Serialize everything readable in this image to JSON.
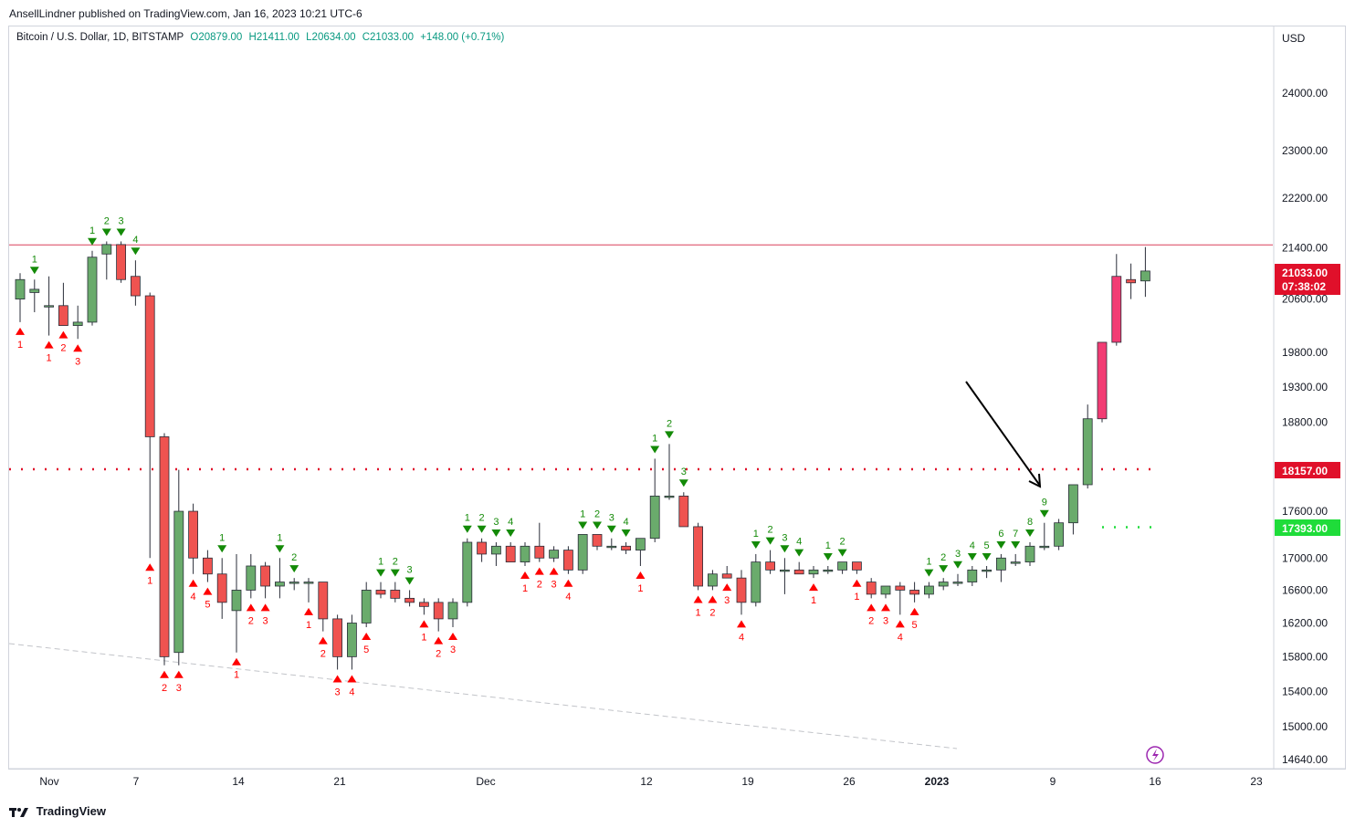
{
  "header": {
    "publisher_line": "AnsellLindner published on TradingView.com, Jan 16, 2023 10:21 UTC-6"
  },
  "legend": {
    "symbol": "Bitcoin / U.S. Dollar, 1D, BITSTAMP",
    "open": "O20879.00",
    "high": "H21411.00",
    "low": "L20634.00",
    "close": "C21033.00",
    "change": "+148.00 (+0.71%)"
  },
  "footer": {
    "brand": "TradingView"
  },
  "colors": {
    "up": "#6aab6c",
    "down": "#ef5350",
    "highlight": "#f23c74",
    "sell_signal": "#138a07",
    "buy_signal": "#ff0000",
    "red_line": "#d9405a",
    "accent_tag": "#e0102a",
    "green_tag": "#1fdc3a"
  },
  "chart_data": {
    "type": "candlestick",
    "currency": "USD",
    "y_axis": {
      "scale": "log",
      "ticks": [
        24000,
        23000,
        22200,
        21400,
        20600,
        19800,
        19300,
        18800,
        18157,
        17600,
        17000,
        16600,
        16200,
        15800,
        15400,
        15000,
        14640
      ],
      "tick_labels": [
        "24000.00",
        "23000.00",
        "22200.00",
        "21400.00",
        "20600.00",
        "19800.00",
        "19300.00",
        "18800.00",
        "",
        "17600.00",
        "17000.00",
        "16600.00",
        "16200.00",
        "15800.00",
        "15400.00",
        "15000.00",
        "14640.00"
      ]
    },
    "x_axis": {
      "labels": [
        "Nov",
        "7",
        "14",
        "21",
        "Dec",
        "12",
        "19",
        "26",
        "2023",
        "9",
        "16",
        "23"
      ],
      "bold": [
        "2023"
      ]
    },
    "price_tags": [
      {
        "value": "21033.00",
        "sub": "07:38:02",
        "color": "#e0102a"
      },
      {
        "value": "18157.00",
        "color": "#e0102a"
      },
      {
        "value": "17393.00",
        "color": "#1fdc3a"
      }
    ],
    "horizontal_lines": [
      {
        "price": 21445,
        "style": "solid",
        "color": "#d9405a"
      },
      {
        "price": 18157,
        "style": "dotted",
        "color": "#e0102a"
      },
      {
        "price": 17393,
        "style": "dotted",
        "color": "#1fdc3a",
        "from_index": 75
      }
    ],
    "candles": [
      {
        "o": 20600,
        "h": 21000,
        "l": 20250,
        "c": 20900
      },
      {
        "o": 20700,
        "h": 20900,
        "l": 20400,
        "c": 20750
      },
      {
        "o": 20500,
        "h": 20950,
        "l": 20050,
        "c": 20500
      },
      {
        "o": 20500,
        "h": 20850,
        "l": 20200,
        "c": 20200
      },
      {
        "o": 20200,
        "h": 20500,
        "l": 20000,
        "c": 20250
      },
      {
        "o": 20250,
        "h": 21350,
        "l": 20200,
        "c": 21250
      },
      {
        "o": 21300,
        "h": 21500,
        "l": 20900,
        "c": 21450
      },
      {
        "o": 21450,
        "h": 21500,
        "l": 20850,
        "c": 20900
      },
      {
        "o": 20950,
        "h": 21200,
        "l": 20500,
        "c": 20650
      },
      {
        "o": 20650,
        "h": 20700,
        "l": 17000,
        "c": 18600
      },
      {
        "o": 18600,
        "h": 18650,
        "l": 15700,
        "c": 15800
      },
      {
        "o": 15850,
        "h": 18150,
        "l": 15700,
        "c": 17600
      },
      {
        "o": 17600,
        "h": 17700,
        "l": 16800,
        "c": 17000
      },
      {
        "o": 17000,
        "h": 17100,
        "l": 16700,
        "c": 16800
      },
      {
        "o": 16800,
        "h": 17000,
        "l": 16250,
        "c": 16450
      },
      {
        "o": 16350,
        "h": 17050,
        "l": 15850,
        "c": 16600
      },
      {
        "o": 16600,
        "h": 17050,
        "l": 16500,
        "c": 16900
      },
      {
        "o": 16900,
        "h": 16950,
        "l": 16500,
        "c": 16650
      },
      {
        "o": 16650,
        "h": 17000,
        "l": 16500,
        "c": 16700
      },
      {
        "o": 16700,
        "h": 16750,
        "l": 16600,
        "c": 16700
      },
      {
        "o": 16700,
        "h": 16750,
        "l": 16450,
        "c": 16700
      },
      {
        "o": 16700,
        "h": 16700,
        "l": 16100,
        "c": 16250
      },
      {
        "o": 16250,
        "h": 16300,
        "l": 15650,
        "c": 15800
      },
      {
        "o": 15800,
        "h": 16300,
        "l": 15650,
        "c": 16200
      },
      {
        "o": 16200,
        "h": 16700,
        "l": 16150,
        "c": 16600
      },
      {
        "o": 16600,
        "h": 16700,
        "l": 16500,
        "c": 16550
      },
      {
        "o": 16600,
        "h": 16700,
        "l": 16450,
        "c": 16500
      },
      {
        "o": 16500,
        "h": 16600,
        "l": 16400,
        "c": 16450
      },
      {
        "o": 16450,
        "h": 16500,
        "l": 16300,
        "c": 16400
      },
      {
        "o": 16450,
        "h": 16500,
        "l": 16100,
        "c": 16250
      },
      {
        "o": 16250,
        "h": 16500,
        "l": 16150,
        "c": 16450
      },
      {
        "o": 16450,
        "h": 17250,
        "l": 16400,
        "c": 17200
      },
      {
        "o": 17200,
        "h": 17250,
        "l": 16950,
        "c": 17050
      },
      {
        "o": 17050,
        "h": 17200,
        "l": 16900,
        "c": 17150
      },
      {
        "o": 17150,
        "h": 17200,
        "l": 16950,
        "c": 16950
      },
      {
        "o": 16950,
        "h": 17200,
        "l": 16900,
        "c": 17150
      },
      {
        "o": 17150,
        "h": 17450,
        "l": 16950,
        "c": 17000
      },
      {
        "o": 17000,
        "h": 17150,
        "l": 16950,
        "c": 17100
      },
      {
        "o": 17100,
        "h": 17150,
        "l": 16800,
        "c": 16850
      },
      {
        "o": 16850,
        "h": 17300,
        "l": 16800,
        "c": 17300
      },
      {
        "o": 17300,
        "h": 17300,
        "l": 17100,
        "c": 17150
      },
      {
        "o": 17150,
        "h": 17250,
        "l": 17100,
        "c": 17150
      },
      {
        "o": 17150,
        "h": 17200,
        "l": 17050,
        "c": 17100
      },
      {
        "o": 17100,
        "h": 17250,
        "l": 16900,
        "c": 17250
      },
      {
        "o": 17250,
        "h": 18300,
        "l": 17200,
        "c": 17800
      },
      {
        "o": 17800,
        "h": 18500,
        "l": 17750,
        "c": 17800
      },
      {
        "o": 17800,
        "h": 17850,
        "l": 17450,
        "c": 17400
      },
      {
        "o": 17400,
        "h": 17450,
        "l": 16600,
        "c": 16650
      },
      {
        "o": 16650,
        "h": 16850,
        "l": 16600,
        "c": 16800
      },
      {
        "o": 16800,
        "h": 16900,
        "l": 16750,
        "c": 16750
      },
      {
        "o": 16750,
        "h": 16850,
        "l": 16300,
        "c": 16450
      },
      {
        "o": 16450,
        "h": 17050,
        "l": 16400,
        "c": 16950
      },
      {
        "o": 16950,
        "h": 17100,
        "l": 16800,
        "c": 16850
      },
      {
        "o": 16850,
        "h": 17000,
        "l": 16550,
        "c": 16850
      },
      {
        "o": 16850,
        "h": 16950,
        "l": 16800,
        "c": 16800
      },
      {
        "o": 16800,
        "h": 16900,
        "l": 16750,
        "c": 16850
      },
      {
        "o": 16850,
        "h": 16900,
        "l": 16800,
        "c": 16850
      },
      {
        "o": 16850,
        "h": 16950,
        "l": 16800,
        "c": 16950
      },
      {
        "o": 16950,
        "h": 16950,
        "l": 16800,
        "c": 16850
      },
      {
        "o": 16700,
        "h": 16750,
        "l": 16500,
        "c": 16550
      },
      {
        "o": 16550,
        "h": 16650,
        "l": 16500,
        "c": 16650
      },
      {
        "o": 16650,
        "h": 16700,
        "l": 16300,
        "c": 16600
      },
      {
        "o": 16600,
        "h": 16700,
        "l": 16450,
        "c": 16550
      },
      {
        "o": 16550,
        "h": 16700,
        "l": 16500,
        "c": 16650
      },
      {
        "o": 16650,
        "h": 16750,
        "l": 16600,
        "c": 16700
      },
      {
        "o": 16700,
        "h": 16800,
        "l": 16650,
        "c": 16700
      },
      {
        "o": 16700,
        "h": 16900,
        "l": 16650,
        "c": 16850
      },
      {
        "o": 16850,
        "h": 16900,
        "l": 16750,
        "c": 16850
      },
      {
        "o": 16850,
        "h": 17050,
        "l": 16700,
        "c": 17000
      },
      {
        "o": 16950,
        "h": 17050,
        "l": 16900,
        "c": 16950
      },
      {
        "o": 16950,
        "h": 17200,
        "l": 16900,
        "c": 17150
      },
      {
        "o": 17150,
        "h": 17450,
        "l": 17100,
        "c": 17150
      },
      {
        "o": 17150,
        "h": 17500,
        "l": 17100,
        "c": 17450
      },
      {
        "o": 17450,
        "h": 17950,
        "l": 17300,
        "c": 17950
      },
      {
        "o": 17950,
        "h": 19050,
        "l": 17900,
        "c": 18850
      },
      {
        "o": 18850,
        "h": 19950,
        "l": 18800,
        "c": 19950
      },
      {
        "o": 19950,
        "h": 21300,
        "l": 19900,
        "c": 20950
      },
      {
        "o": 20900,
        "h": 21150,
        "l": 20600,
        "c": 20850
      },
      {
        "o": 20879,
        "h": 21411,
        "l": 20634,
        "c": 21033
      }
    ],
    "highlighted_candles": [
      75,
      76
    ],
    "signals": [
      {
        "i": 0,
        "pos": "below",
        "label": "1"
      },
      {
        "i": 1,
        "pos": "above",
        "label": "1"
      },
      {
        "i": 2,
        "pos": "below",
        "label": "1"
      },
      {
        "i": 3,
        "pos": "below",
        "label": "2"
      },
      {
        "i": 4,
        "pos": "below",
        "label": "3"
      },
      {
        "i": 5,
        "pos": "above",
        "label": "1"
      },
      {
        "i": 6,
        "pos": "above",
        "label": "2"
      },
      {
        "i": 7,
        "pos": "above",
        "label": "3"
      },
      {
        "i": 8,
        "pos": "above",
        "label": "4"
      },
      {
        "i": 9,
        "pos": "below",
        "label": "1"
      },
      {
        "i": 10,
        "pos": "below",
        "label": "2"
      },
      {
        "i": 11,
        "pos": "below",
        "label": "3"
      },
      {
        "i": 12,
        "pos": "below",
        "label": "4"
      },
      {
        "i": 13,
        "pos": "below",
        "label": "5"
      },
      {
        "i": 14,
        "pos": "above",
        "label": "1"
      },
      {
        "i": 15,
        "pos": "below",
        "label": "1"
      },
      {
        "i": 16,
        "pos": "below",
        "label": "2"
      },
      {
        "i": 17,
        "pos": "below",
        "label": "3"
      },
      {
        "i": 18,
        "pos": "above",
        "label": "1"
      },
      {
        "i": 19,
        "pos": "above",
        "label": "2"
      },
      {
        "i": 20,
        "pos": "below",
        "label": "1"
      },
      {
        "i": 21,
        "pos": "below",
        "label": "2"
      },
      {
        "i": 22,
        "pos": "below",
        "label": "3"
      },
      {
        "i": 23,
        "pos": "below",
        "label": "4"
      },
      {
        "i": 24,
        "pos": "below",
        "label": "5"
      },
      {
        "i": 25,
        "pos": "above",
        "label": "1"
      },
      {
        "i": 26,
        "pos": "above",
        "label": "2"
      },
      {
        "i": 27,
        "pos": "above",
        "label": "3"
      },
      {
        "i": 28,
        "pos": "below",
        "label": "1"
      },
      {
        "i": 29,
        "pos": "below",
        "label": "2"
      },
      {
        "i": 30,
        "pos": "below",
        "label": "3"
      },
      {
        "i": 31,
        "pos": "above",
        "label": "1"
      },
      {
        "i": 32,
        "pos": "above",
        "label": "2"
      },
      {
        "i": 33,
        "pos": "above",
        "label": "3"
      },
      {
        "i": 34,
        "pos": "above",
        "label": "4"
      },
      {
        "i": 35,
        "pos": "below",
        "label": "1"
      },
      {
        "i": 36,
        "pos": "below",
        "label": "2"
      },
      {
        "i": 37,
        "pos": "below",
        "label": "3"
      },
      {
        "i": 38,
        "pos": "below",
        "label": "4"
      },
      {
        "i": 39,
        "pos": "above",
        "label": "1"
      },
      {
        "i": 40,
        "pos": "above",
        "label": "2"
      },
      {
        "i": 41,
        "pos": "above",
        "label": "3"
      },
      {
        "i": 42,
        "pos": "above",
        "label": "4"
      },
      {
        "i": 43,
        "pos": "below",
        "label": "1"
      },
      {
        "i": 44,
        "pos": "above",
        "label": "1"
      },
      {
        "i": 45,
        "pos": "above",
        "label": "2"
      },
      {
        "i": 46,
        "pos": "above",
        "label": "3"
      },
      {
        "i": 47,
        "pos": "below",
        "label": "1"
      },
      {
        "i": 48,
        "pos": "below",
        "label": "2"
      },
      {
        "i": 49,
        "pos": "below",
        "label": "3"
      },
      {
        "i": 50,
        "pos": "below",
        "label": "4"
      },
      {
        "i": 51,
        "pos": "above",
        "label": "1"
      },
      {
        "i": 52,
        "pos": "above",
        "label": "2"
      },
      {
        "i": 53,
        "pos": "above",
        "label": "3"
      },
      {
        "i": 54,
        "pos": "above",
        "label": "4"
      },
      {
        "i": 55,
        "pos": "below",
        "label": "1"
      },
      {
        "i": 56,
        "pos": "above",
        "label": "1"
      },
      {
        "i": 57,
        "pos": "above",
        "label": "2"
      },
      {
        "i": 58,
        "pos": "below",
        "label": "1"
      },
      {
        "i": 59,
        "pos": "below",
        "label": "2"
      },
      {
        "i": 60,
        "pos": "below",
        "label": "3"
      },
      {
        "i": 61,
        "pos": "below",
        "label": "4"
      },
      {
        "i": 62,
        "pos": "below",
        "label": "5"
      },
      {
        "i": 63,
        "pos": "above",
        "label": "1"
      },
      {
        "i": 64,
        "pos": "above",
        "label": "2"
      },
      {
        "i": 65,
        "pos": "above",
        "label": "3"
      },
      {
        "i": 66,
        "pos": "above",
        "label": "4"
      },
      {
        "i": 67,
        "pos": "above",
        "label": "5"
      },
      {
        "i": 68,
        "pos": "above",
        "label": "6"
      },
      {
        "i": 69,
        "pos": "above",
        "label": "7"
      },
      {
        "i": 70,
        "pos": "above",
        "label": "8"
      },
      {
        "i": 71,
        "pos": "above",
        "label": "9"
      }
    ]
  }
}
